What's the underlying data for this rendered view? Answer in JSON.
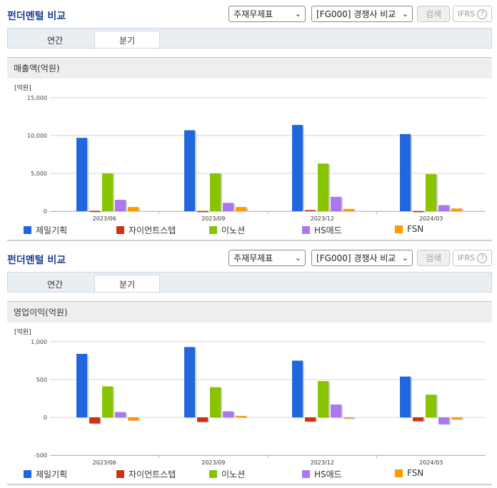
{
  "company_colors": [
    "#2266dd",
    "#cc3311",
    "#88c400",
    "#aa77ee",
    "#ff9900"
  ],
  "companies": [
    "제일기획",
    "자이언트스텝",
    "이노션",
    "HS애드",
    "FSN"
  ],
  "panels": [
    {
      "title": "펀더멘털 비교",
      "select_statement": "주재무제표",
      "select_compare": "[FG000] 경쟁사 비교",
      "search_label": "검색",
      "ifrs_label": "IFRS",
      "help_glyph": "?",
      "tab_annual": "연간",
      "tab_quarter": "분기",
      "metric_label": "매출액(억원)",
      "unit_label": "[억원]"
    },
    {
      "title": "펀더멘털 비교",
      "select_statement": "주재무제표",
      "select_compare": "[FG000] 경쟁사 비교",
      "search_label": "검색",
      "ifrs_label": "IFRS",
      "help_glyph": "?",
      "tab_annual": "연간",
      "tab_quarter": "분기",
      "metric_label": "영업이익(억원)",
      "unit_label": "[억원]"
    }
  ],
  "chart_data": [
    {
      "type": "bar",
      "title": "매출액(억원)",
      "ylabel": "[억원]",
      "categories": [
        "2023/06",
        "2023/09",
        "2023/12",
        "2024/03"
      ],
      "ylim": [
        0,
        15000
      ],
      "yticks": [
        0,
        5000,
        10000,
        15000
      ],
      "ytick_labels": [
        "0",
        "5,000",
        "10,000",
        "15,000"
      ],
      "grid": true,
      "legend": "bottom",
      "series": [
        {
          "name": "제일기획",
          "color": "#2266dd",
          "values": [
            9700,
            10700,
            11400,
            10200
          ]
        },
        {
          "name": "자이언트스텝",
          "color": "#cc3311",
          "values": [
            50,
            40,
            150,
            30
          ]
        },
        {
          "name": "이노션",
          "color": "#88c400",
          "values": [
            5000,
            5000,
            6300,
            4900
          ]
        },
        {
          "name": "HS애드",
          "color": "#aa77ee",
          "values": [
            1500,
            1100,
            1900,
            800
          ]
        },
        {
          "name": "FSN",
          "color": "#ff9900",
          "values": [
            550,
            550,
            300,
            350
          ]
        }
      ]
    },
    {
      "type": "bar",
      "title": "영업이익(억원)",
      "ylabel": "[억원]",
      "categories": [
        "2023/06",
        "2023/09",
        "2023/12",
        "2024/03"
      ],
      "ylim": [
        -500,
        1000
      ],
      "yticks": [
        -500,
        0,
        500,
        1000
      ],
      "ytick_labels": [
        "-500",
        "0",
        "500",
        "1,000"
      ],
      "grid": true,
      "legend": "bottom",
      "series": [
        {
          "name": "제일기획",
          "color": "#2266dd",
          "values": [
            840,
            930,
            750,
            540
          ]
        },
        {
          "name": "자이언트스텝",
          "color": "#cc3311",
          "values": [
            -80,
            -60,
            -55,
            -50
          ]
        },
        {
          "name": "이노션",
          "color": "#88c400",
          "values": [
            410,
            400,
            480,
            300
          ]
        },
        {
          "name": "HS애드",
          "color": "#aa77ee",
          "values": [
            70,
            80,
            170,
            -90
          ]
        },
        {
          "name": "FSN",
          "color": "#ff9900",
          "values": [
            -40,
            20,
            0,
            -25
          ]
        }
      ]
    }
  ]
}
